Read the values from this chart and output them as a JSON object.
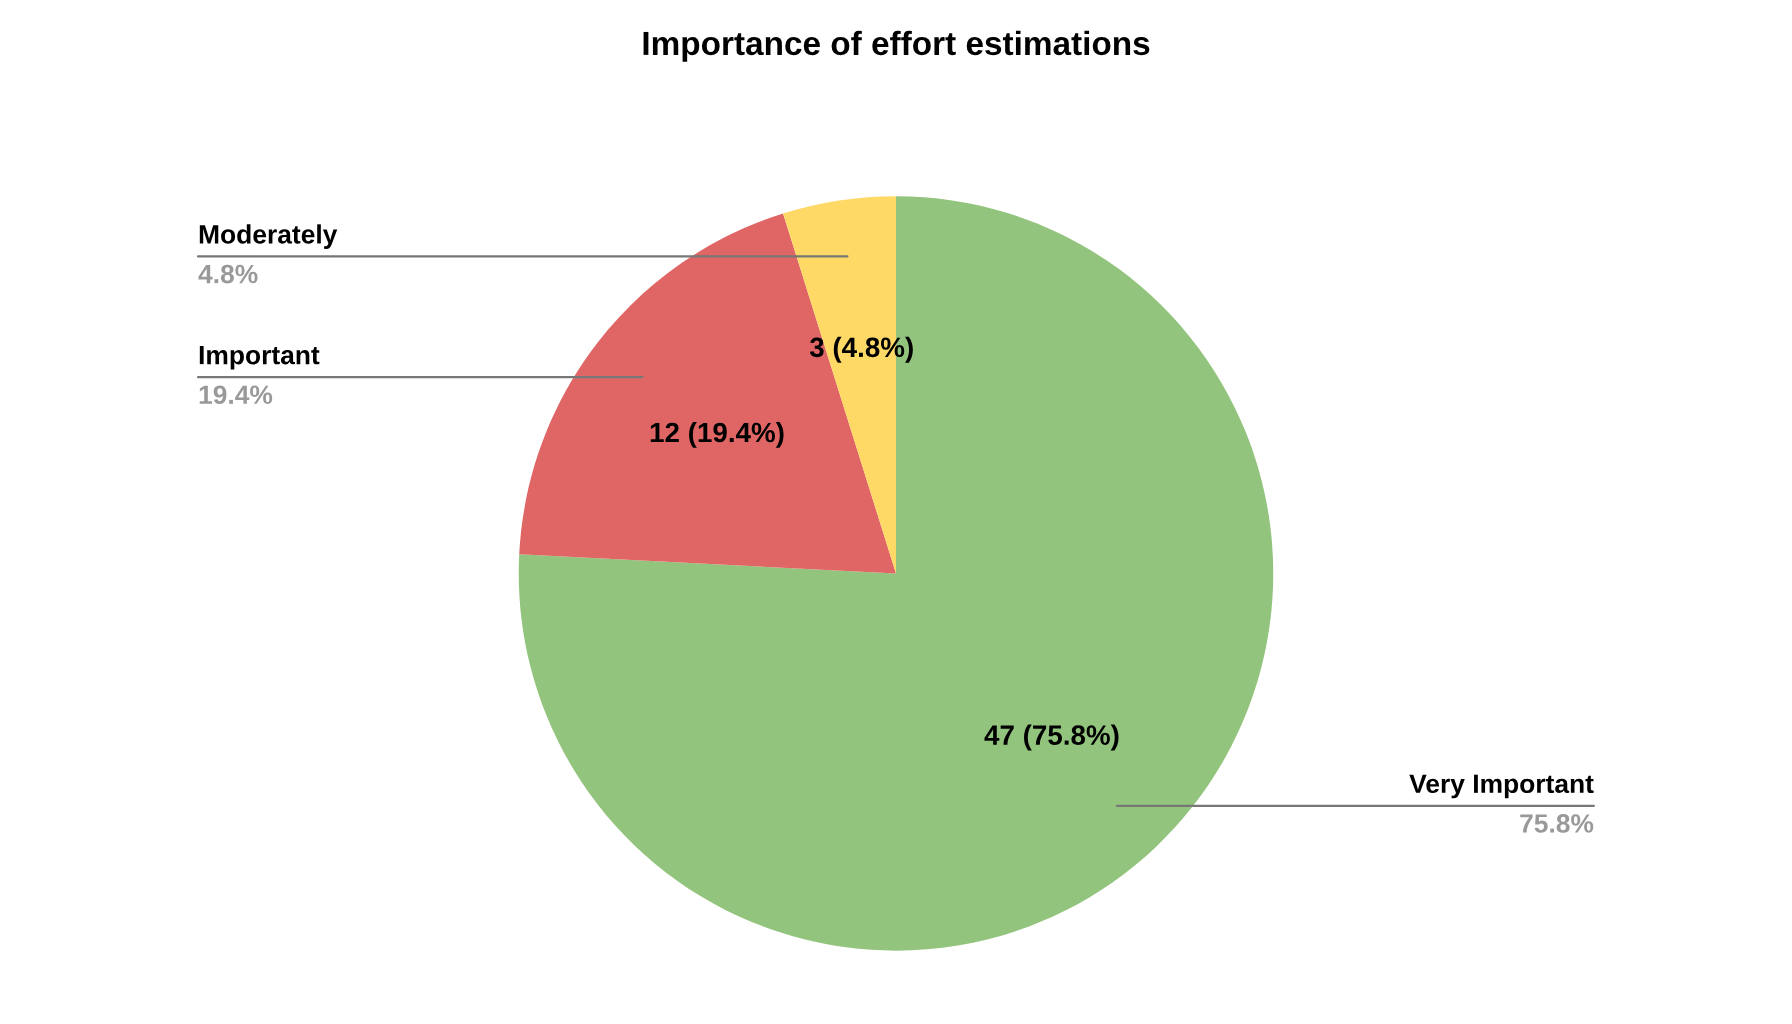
{
  "chart_data": {
    "type": "pie",
    "title": "Importance of effort estimations",
    "categories": [
      "Very Important",
      "Important",
      "Moderately"
    ],
    "values": [
      47,
      12,
      3
    ],
    "colors": [
      "#93c47d",
      "#e06666",
      "#ffd966"
    ],
    "value_labels": [
      "47 (75.8%)",
      "12 (19.4%)",
      "3 (4.8%)"
    ],
    "annotations": [
      "75.8%",
      "19.4%",
      "4.8%"
    ],
    "legend": false
  }
}
